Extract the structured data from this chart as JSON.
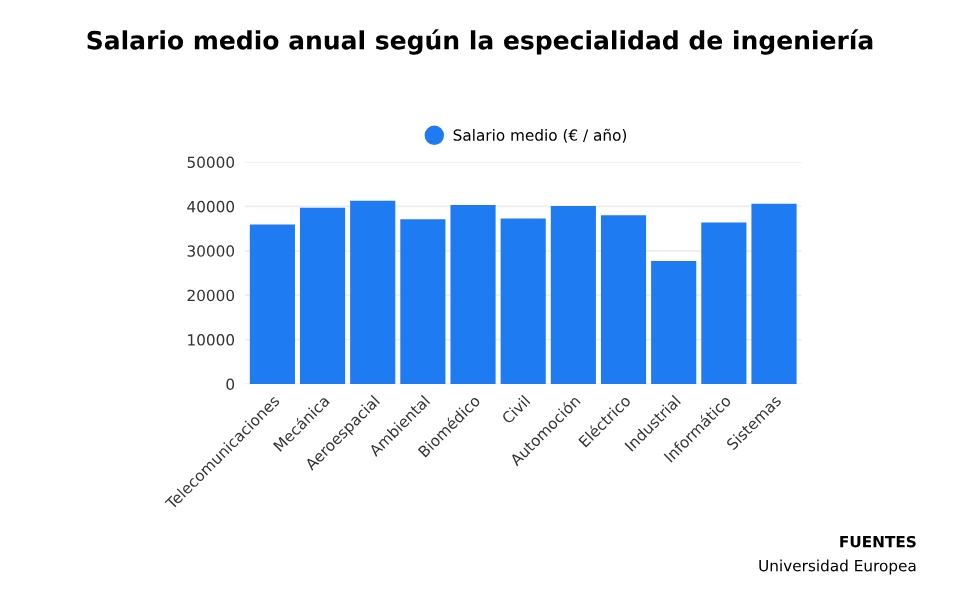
{
  "chart_data": {
    "type": "bar",
    "title": "Salario medio anual según la especialidad de ingeniería",
    "categories": [
      "Telecomunicaciones",
      "Mecánica",
      "Aeroespacial",
      "Ambiental",
      "Biomédico",
      "Civil",
      "Automoción",
      "Eléctrico",
      "Industrial",
      "Informático",
      "Sistemas"
    ],
    "series": [
      {
        "name": "Salario medio (€ / año)",
        "color": "#1f7bf2",
        "values": [
          35900,
          39700,
          41300,
          37100,
          40300,
          37300,
          40100,
          38000,
          27700,
          36400,
          40600
        ]
      }
    ],
    "ylim": [
      0,
      50000
    ],
    "yticks": [
      0,
      10000,
      20000,
      30000,
      40000,
      50000
    ],
    "grid": "y",
    "legend": "top",
    "annotations": [
      "FUENTES",
      "Universidad Europea"
    ]
  }
}
